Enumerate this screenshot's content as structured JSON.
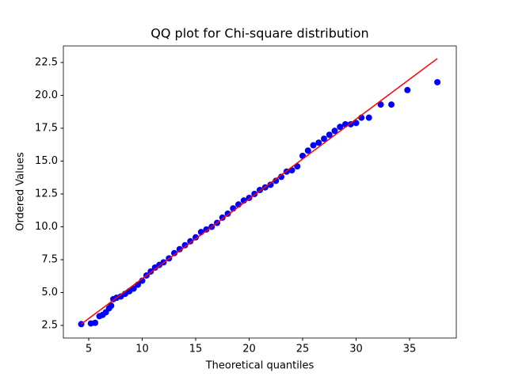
{
  "chart_data": {
    "type": "scatter",
    "title": "QQ plot for Chi-square distribution",
    "x_label": "Theoretical quantiles",
    "y_label": "Ordered Values",
    "xlim": [
      2.63,
      39.37
    ],
    "ylim": [
      1.54,
      23.76
    ],
    "xticks": [
      5,
      10,
      15,
      20,
      25,
      30,
      35
    ],
    "yticks": [
      2.5,
      {
        "value": 5,
        "label": "5.0"
      },
      7.5,
      {
        "value": 10,
        "label": "10.0"
      },
      12.5,
      {
        "value": 15,
        "label": "15.0"
      },
      17.5,
      {
        "value": 20,
        "label": "20.0"
      },
      22.5
    ],
    "points": {
      "color": "#0000ff",
      "x": [
        4.3,
        5.2,
        5.6,
        6.0,
        6.3,
        6.6,
        6.9,
        7.1,
        7.3,
        7.6,
        8.0,
        8.4,
        8.8,
        9.2,
        9.6,
        10.0,
        10.4,
        10.8,
        11.2,
        11.6,
        12.0,
        12.5,
        13.0,
        13.5,
        14.0,
        14.5,
        15.0,
        15.5,
        16.0,
        16.5,
        17.0,
        17.5,
        18.0,
        18.5,
        19.0,
        19.5,
        20.0,
        20.5,
        21.0,
        21.5,
        22.0,
        22.5,
        23.0,
        23.5,
        24.0,
        24.5,
        25.0,
        25.5,
        26.0,
        26.5,
        27.0,
        27.5,
        28.0,
        28.5,
        29.0,
        29.5,
        30.0,
        30.5,
        31.2,
        32.3,
        33.3,
        34.8,
        37.6
      ],
      "y": [
        2.6,
        2.65,
        2.7,
        3.2,
        3.3,
        3.5,
        3.8,
        4.0,
        4.5,
        4.6,
        4.7,
        4.9,
        5.1,
        5.3,
        5.6,
        5.9,
        6.3,
        6.6,
        6.9,
        7.1,
        7.3,
        7.6,
        8.0,
        8.3,
        8.6,
        8.9,
        9.2,
        9.6,
        9.8,
        10.0,
        10.3,
        10.7,
        11.0,
        11.4,
        11.7,
        12.0,
        12.2,
        12.5,
        12.8,
        13.0,
        13.2,
        13.5,
        13.8,
        14.2,
        14.3,
        14.6,
        15.4,
        15.8,
        16.2,
        16.4,
        16.7,
        17.0,
        17.3,
        17.6,
        17.8,
        17.8,
        17.9,
        18.3,
        18.3,
        19.3,
        19.3,
        20.4,
        21.0
      ]
    },
    "fit_line": {
      "color": "#ff0000",
      "x": [
        4.3,
        37.6
      ],
      "y": [
        2.6,
        22.8
      ]
    }
  }
}
